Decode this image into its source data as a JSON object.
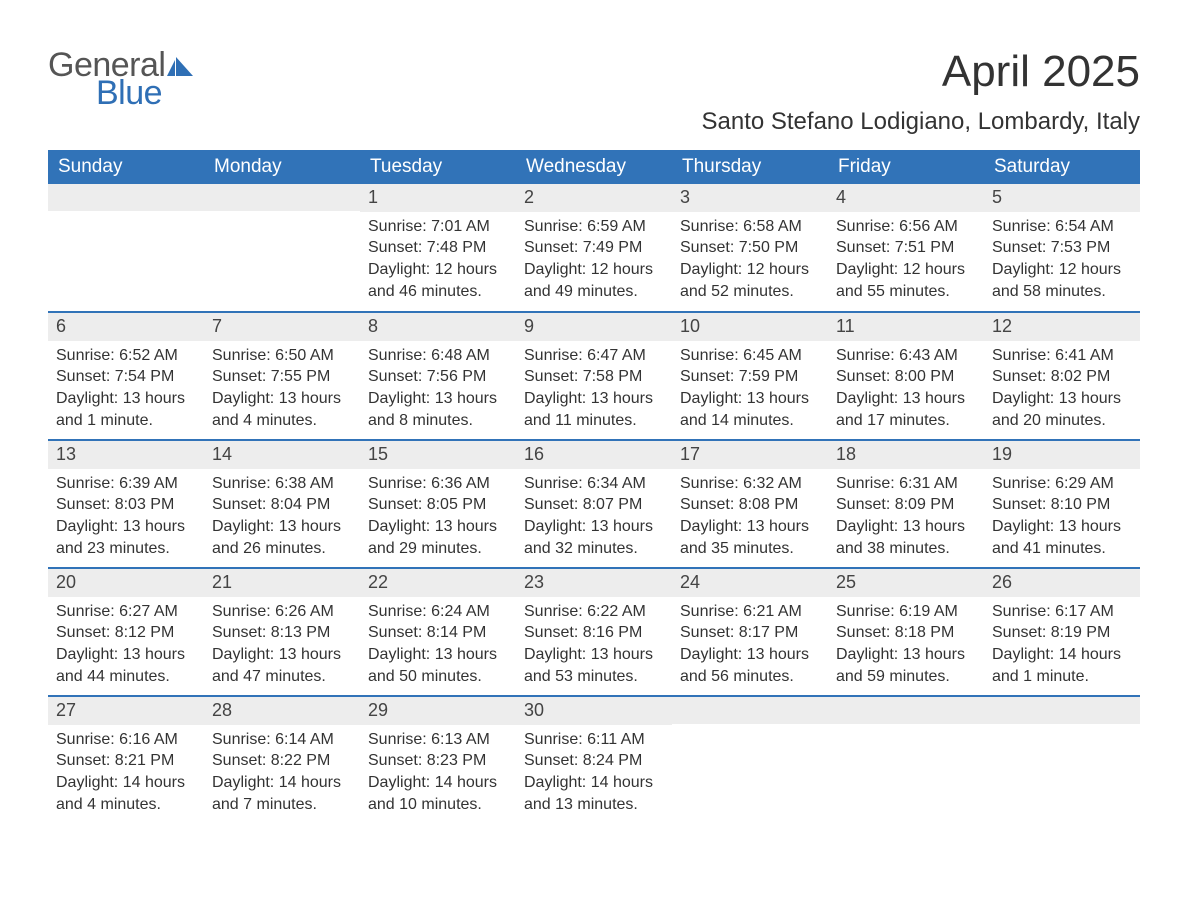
{
  "logo": {
    "line1": "General",
    "line2": "Blue",
    "brand_color": "#2f6fb5"
  },
  "title": "April 2025",
  "location": "Santo Stefano Lodigiano, Lombardy, Italy",
  "colors": {
    "header_bg": "#3173b8",
    "header_text": "#ffffff",
    "daynum_bg": "#ededed",
    "rule": "#3173b8",
    "text": "#333333",
    "background": "#ffffff"
  },
  "fonts": {
    "title_pt": 44,
    "location_pt": 24,
    "header_pt": 19,
    "daynum_pt": 18,
    "body_pt": 16
  },
  "day_labels": [
    "Sunday",
    "Monday",
    "Tuesday",
    "Wednesday",
    "Thursday",
    "Friday",
    "Saturday"
  ],
  "weeks": [
    [
      null,
      null,
      {
        "n": "1",
        "sunrise": "7:01 AM",
        "sunset": "7:48 PM",
        "daylight": "12 hours and 46 minutes."
      },
      {
        "n": "2",
        "sunrise": "6:59 AM",
        "sunset": "7:49 PM",
        "daylight": "12 hours and 49 minutes."
      },
      {
        "n": "3",
        "sunrise": "6:58 AM",
        "sunset": "7:50 PM",
        "daylight": "12 hours and 52 minutes."
      },
      {
        "n": "4",
        "sunrise": "6:56 AM",
        "sunset": "7:51 PM",
        "daylight": "12 hours and 55 minutes."
      },
      {
        "n": "5",
        "sunrise": "6:54 AM",
        "sunset": "7:53 PM",
        "daylight": "12 hours and 58 minutes."
      }
    ],
    [
      {
        "n": "6",
        "sunrise": "6:52 AM",
        "sunset": "7:54 PM",
        "daylight": "13 hours and 1 minute."
      },
      {
        "n": "7",
        "sunrise": "6:50 AM",
        "sunset": "7:55 PM",
        "daylight": "13 hours and 4 minutes."
      },
      {
        "n": "8",
        "sunrise": "6:48 AM",
        "sunset": "7:56 PM",
        "daylight": "13 hours and 8 minutes."
      },
      {
        "n": "9",
        "sunrise": "6:47 AM",
        "sunset": "7:58 PM",
        "daylight": "13 hours and 11 minutes."
      },
      {
        "n": "10",
        "sunrise": "6:45 AM",
        "sunset": "7:59 PM",
        "daylight": "13 hours and 14 minutes."
      },
      {
        "n": "11",
        "sunrise": "6:43 AM",
        "sunset": "8:00 PM",
        "daylight": "13 hours and 17 minutes."
      },
      {
        "n": "12",
        "sunrise": "6:41 AM",
        "sunset": "8:02 PM",
        "daylight": "13 hours and 20 minutes."
      }
    ],
    [
      {
        "n": "13",
        "sunrise": "6:39 AM",
        "sunset": "8:03 PM",
        "daylight": "13 hours and 23 minutes."
      },
      {
        "n": "14",
        "sunrise": "6:38 AM",
        "sunset": "8:04 PM",
        "daylight": "13 hours and 26 minutes."
      },
      {
        "n": "15",
        "sunrise": "6:36 AM",
        "sunset": "8:05 PM",
        "daylight": "13 hours and 29 minutes."
      },
      {
        "n": "16",
        "sunrise": "6:34 AM",
        "sunset": "8:07 PM",
        "daylight": "13 hours and 32 minutes."
      },
      {
        "n": "17",
        "sunrise": "6:32 AM",
        "sunset": "8:08 PM",
        "daylight": "13 hours and 35 minutes."
      },
      {
        "n": "18",
        "sunrise": "6:31 AM",
        "sunset": "8:09 PM",
        "daylight": "13 hours and 38 minutes."
      },
      {
        "n": "19",
        "sunrise": "6:29 AM",
        "sunset": "8:10 PM",
        "daylight": "13 hours and 41 minutes."
      }
    ],
    [
      {
        "n": "20",
        "sunrise": "6:27 AM",
        "sunset": "8:12 PM",
        "daylight": "13 hours and 44 minutes."
      },
      {
        "n": "21",
        "sunrise": "6:26 AM",
        "sunset": "8:13 PM",
        "daylight": "13 hours and 47 minutes."
      },
      {
        "n": "22",
        "sunrise": "6:24 AM",
        "sunset": "8:14 PM",
        "daylight": "13 hours and 50 minutes."
      },
      {
        "n": "23",
        "sunrise": "6:22 AM",
        "sunset": "8:16 PM",
        "daylight": "13 hours and 53 minutes."
      },
      {
        "n": "24",
        "sunrise": "6:21 AM",
        "sunset": "8:17 PM",
        "daylight": "13 hours and 56 minutes."
      },
      {
        "n": "25",
        "sunrise": "6:19 AM",
        "sunset": "8:18 PM",
        "daylight": "13 hours and 59 minutes."
      },
      {
        "n": "26",
        "sunrise": "6:17 AM",
        "sunset": "8:19 PM",
        "daylight": "14 hours and 1 minute."
      }
    ],
    [
      {
        "n": "27",
        "sunrise": "6:16 AM",
        "sunset": "8:21 PM",
        "daylight": "14 hours and 4 minutes."
      },
      {
        "n": "28",
        "sunrise": "6:14 AM",
        "sunset": "8:22 PM",
        "daylight": "14 hours and 7 minutes."
      },
      {
        "n": "29",
        "sunrise": "6:13 AM",
        "sunset": "8:23 PM",
        "daylight": "14 hours and 10 minutes."
      },
      {
        "n": "30",
        "sunrise": "6:11 AM",
        "sunset": "8:24 PM",
        "daylight": "14 hours and 13 minutes."
      },
      null,
      null,
      null
    ]
  ],
  "labels": {
    "sunrise": "Sunrise: ",
    "sunset": "Sunset: ",
    "daylight": "Daylight: "
  }
}
